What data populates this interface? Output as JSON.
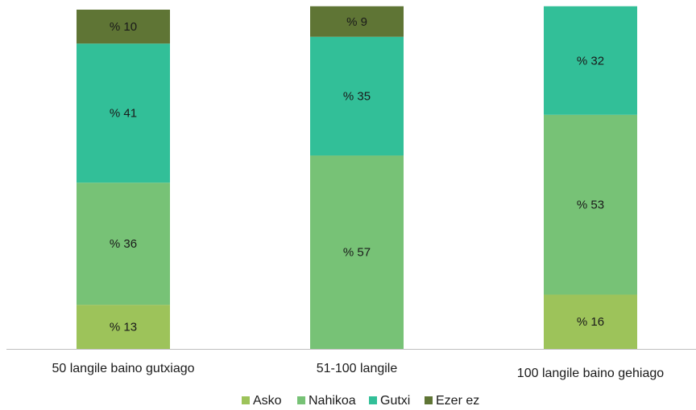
{
  "chart_data": {
    "type": "bar",
    "stacked": true,
    "value_prefix": "% ",
    "categories": [
      "50 langile baino gutxiago",
      "51-100 langile",
      "100 langile baino gehiago"
    ],
    "series": [
      {
        "name": "Asko",
        "color": "#9dc35a",
        "values": [
          13,
          0,
          16
        ]
      },
      {
        "name": "Nahikoa",
        "color": "#77c276",
        "values": [
          36,
          57,
          53
        ]
      },
      {
        "name": "Gutxi",
        "color": "#32bf98",
        "values": [
          41,
          35,
          32
        ]
      },
      {
        "name": "Ezer ez",
        "color": "#5f7535",
        "values": [
          10,
          9,
          0
        ]
      }
    ],
    "ylim": [
      0,
      100
    ],
    "axis_color": "#bfbfbf",
    "legend_position": "bottom",
    "grid": false,
    "title": "",
    "xlabel": "",
    "ylabel": ""
  }
}
